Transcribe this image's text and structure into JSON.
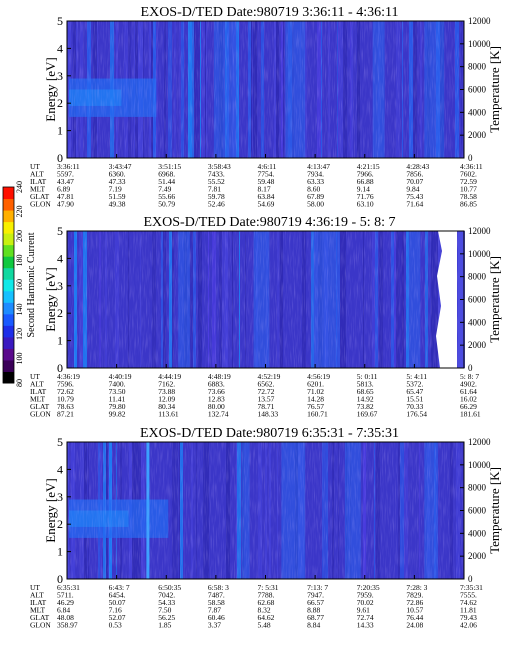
{
  "colorbar": {
    "label": "Second Harmonic Current",
    "ticks": [
      "80",
      "100",
      "120",
      "140",
      "160",
      "180",
      "200",
      "220",
      "240"
    ],
    "colors": [
      "#000000",
      "#3a0058",
      "#5a0a8c",
      "#3a1ac0",
      "#1e2ee8",
      "#1a5aff",
      "#1e8cff",
      "#16c0ff",
      "#10e8e8",
      "#10d8a0",
      "#10c840",
      "#60e020",
      "#c8f010",
      "#f8f000",
      "#ffb000",
      "#ff6000",
      "#ff1000"
    ]
  },
  "chart_data": [
    {
      "type": "heatmap",
      "title": "EXOS-D/TED   Date:980719  3:36:11 - 4:36:11",
      "ylabel": "Energy [eV]",
      "y2label": "Temperature [K]",
      "ylim": [
        0,
        5
      ],
      "y2lim": [
        0,
        12000
      ],
      "yticks": [
        "0",
        "1",
        "2",
        "3",
        "4",
        "5"
      ],
      "y2ticks": [
        "0",
        "2000",
        "4000",
        "6000",
        "8000",
        "10000",
        "12000"
      ],
      "row_labels": [
        "UT",
        "ALT",
        "ILAT",
        "MLT",
        "GLAT",
        "GLON"
      ],
      "columns": [
        [
          "3:36:11",
          "5597.",
          "43.47",
          "6.89",
          "47.81",
          "47.90"
        ],
        [
          "3:43:47",
          "6360.",
          "47.33",
          "7.19",
          "51.59",
          "49.38"
        ],
        [
          "3:51:15",
          "6968.",
          "51.44",
          "7.49",
          "55.66",
          "50.79"
        ],
        [
          "3:58:43",
          "7433.",
          "55.52",
          "7.81",
          "59.78",
          "52.46"
        ],
        [
          "4:6:11",
          "7754.",
          "59.48",
          "8.17",
          "63.84",
          "54.69"
        ],
        [
          "4:13:47",
          "7934.",
          "63.33",
          "8.60",
          "67.89",
          "58.00"
        ],
        [
          "4:21:15",
          "7966.",
          "66.88",
          "9.14",
          "71.76",
          "63.10"
        ],
        [
          "4:28:43",
          "7856.",
          "70.07",
          "9.84",
          "75.43",
          "71.64"
        ],
        [
          "4:36:11",
          "7602.",
          "72.59",
          "10.77",
          "78.58",
          "86.85"
        ]
      ]
    },
    {
      "type": "heatmap",
      "title": "EXOS-D/TED   Date:980719  4:36:19 - 5: 8: 7",
      "ylabel": "Energy [eV]",
      "y2label": "Temperature [K]",
      "ylim": [
        0,
        5
      ],
      "y2lim": [
        0,
        12000
      ],
      "yticks": [
        "0",
        "1",
        "2",
        "3",
        "4",
        "5"
      ],
      "y2ticks": [
        "0",
        "2000",
        "4000",
        "6000",
        "8000",
        "10000",
        "12000"
      ],
      "row_labels": [
        "UT",
        "ALT",
        "ILAT",
        "MLT",
        "GLAT",
        "GLON"
      ],
      "columns": [
        [
          "4:36:19",
          "7596.",
          "72.62",
          "10.79",
          "78.63",
          "87.21"
        ],
        [
          "4:40:19",
          "7400.",
          "73.50",
          "11.41",
          "79.80",
          "99.82"
        ],
        [
          "4:44:19",
          "7162.",
          "73.88",
          "12.09",
          "80.34",
          "113.61"
        ],
        [
          "4:48:19",
          "6883.",
          "73.66",
          "12.83",
          "80.00",
          "132.74"
        ],
        [
          "4:52:19",
          "6562.",
          "72.72",
          "13.57",
          "78.71",
          "148.33"
        ],
        [
          "4:56:19",
          "6201.",
          "71.02",
          "14.28",
          "76.57",
          "160.71"
        ],
        [
          "5: 0:11",
          "5813.",
          "68.65",
          "14.92",
          "73.82",
          "169.67"
        ],
        [
          "5: 4:11",
          "5372.",
          "65.47",
          "15.51",
          "70.33",
          "176.54"
        ],
        [
          "5: 8: 7",
          "4902.",
          "61.64",
          "16.02",
          "66.29",
          "181.61"
        ]
      ]
    },
    {
      "type": "heatmap",
      "title": "EXOS-D/TED   Date:980719  6:35:31 - 7:35:31",
      "ylabel": "Energy [eV]",
      "y2label": "Temperature [K]",
      "ylim": [
        0,
        5
      ],
      "y2lim": [
        0,
        12000
      ],
      "yticks": [
        "0",
        "1",
        "2",
        "3",
        "4",
        "5"
      ],
      "y2ticks": [
        "0",
        "2000",
        "4000",
        "6000",
        "8000",
        "10000",
        "12000"
      ],
      "row_labels": [
        "UT",
        "ALT",
        "ILAT",
        "MLT",
        "GLAT",
        "GLON"
      ],
      "columns": [
        [
          "6:35:31",
          "5711.",
          "46.29",
          "6.84",
          "48.08",
          "358.97"
        ],
        [
          "6:43: 7",
          "6454.",
          "50.07",
          "7.16",
          "52.07",
          "0.53"
        ],
        [
          "6:50:35",
          "7042.",
          "54.33",
          "7.50",
          "56.25",
          "1.85"
        ],
        [
          "6:58: 3",
          "7487.",
          "58.58",
          "7.87",
          "60.46",
          "3.37"
        ],
        [
          "7: 5:31",
          "7788.",
          "62.68",
          "8.32",
          "64.62",
          "5.48"
        ],
        [
          "7:13: 7",
          "7947.",
          "66.57",
          "8.88",
          "68.77",
          "8.84"
        ],
        [
          "7:20:35",
          "7959.",
          "70.02",
          "9.61",
          "72.74",
          "14.33"
        ],
        [
          "7:28: 3",
          "7829.",
          "72.86",
          "10.57",
          "76.44",
          "24.08"
        ],
        [
          "7:35:31",
          "7555.",
          "74.62",
          "11.81",
          "79.43",
          "42.06"
        ]
      ]
    }
  ]
}
